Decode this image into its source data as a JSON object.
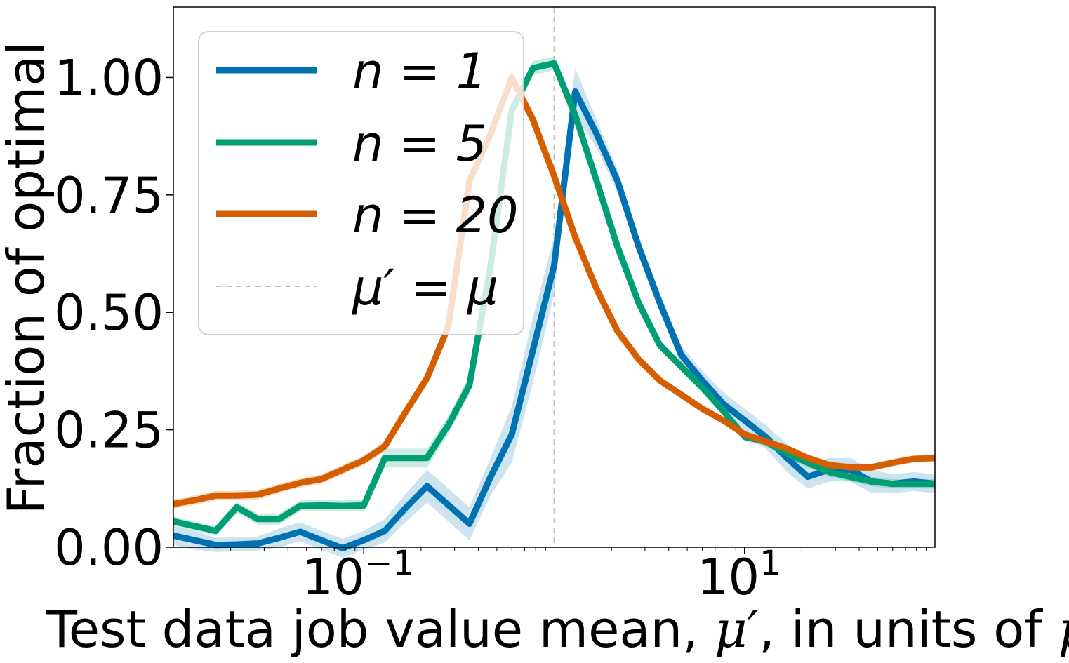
{
  "chart_data": {
    "type": "line",
    "xscale": "log",
    "xlabel_prefix": "Test data job value mean, ",
    "xlabel_symbol": "μ′",
    "xlabel_mid": ", in units of ",
    "xlabel_unit": "μ",
    "ylabel": "Fraction of optimal",
    "xlim": [
      0.01,
      100
    ],
    "ylim": [
      0,
      1.15
    ],
    "xticks": [
      {
        "value": 0.1,
        "base": "10",
        "exp": "−1"
      },
      {
        "value": 10,
        "base": "10",
        "exp": "1"
      }
    ],
    "yticks": [
      {
        "value": 0,
        "label": "0.00"
      },
      {
        "value": 0.25,
        "label": "0.25"
      },
      {
        "value": 0.5,
        "label": "0.50"
      },
      {
        "value": 0.75,
        "label": "0.75"
      },
      {
        "value": 1.0,
        "label": "1.00"
      }
    ],
    "reference_line": {
      "x": 1,
      "label": "μ′ = μ",
      "color": "#c0c0c0"
    },
    "legend_position": "upper-left",
    "grid": false,
    "series": [
      {
        "name": "n = 1",
        "color": "#0072b2",
        "x": [
          0.01,
          0.0129,
          0.0167,
          0.0215,
          0.0278,
          0.0359,
          0.0464,
          0.0599,
          0.0774,
          0.1,
          0.129,
          0.167,
          0.215,
          0.278,
          0.359,
          0.464,
          0.599,
          0.774,
          1.0,
          1.29,
          1.67,
          2.15,
          2.78,
          3.59,
          4.64,
          5.99,
          7.74,
          10,
          12.9,
          16.7,
          21.5,
          27.8,
          35.9,
          46.4,
          59.9,
          77.4,
          100
        ],
        "y": [
          0.025,
          0.015,
          0.005,
          0.006,
          0.008,
          0.02,
          0.033,
          0.015,
          -0.002,
          0.015,
          0.035,
          0.085,
          0.13,
          0.09,
          0.05,
          0.15,
          0.24,
          0.42,
          0.6,
          0.97,
          0.88,
          0.78,
          0.64,
          0.52,
          0.41,
          0.355,
          0.305,
          0.27,
          0.235,
          0.19,
          0.15,
          0.165,
          0.165,
          0.14,
          0.135,
          0.14,
          0.135
        ],
        "band_halfwidth": [
          0.02,
          0.02,
          0.015,
          0.015,
          0.015,
          0.02,
          0.02,
          0.02,
          0.02,
          0.02,
          0.025,
          0.03,
          0.035,
          0.035,
          0.035,
          0.04,
          0.06,
          0.07,
          0.06,
          0.05,
          0.03,
          0.025,
          0.02,
          0.02,
          0.02,
          0.02,
          0.025,
          0.025,
          0.025,
          0.03,
          0.025,
          0.025,
          0.025,
          0.025,
          0.02,
          0.02,
          0.02
        ]
      },
      {
        "name": "n = 5",
        "color": "#009e73",
        "x": [
          0.01,
          0.0129,
          0.0167,
          0.0215,
          0.0278,
          0.0359,
          0.0464,
          0.0599,
          0.0774,
          0.1,
          0.129,
          0.167,
          0.215,
          0.278,
          0.359,
          0.464,
          0.599,
          0.774,
          1.0,
          1.29,
          1.67,
          2.15,
          2.78,
          3.59,
          4.64,
          5.99,
          7.74,
          10,
          12.9,
          16.7,
          21.5,
          27.8,
          35.9,
          46.4,
          59.9,
          77.4,
          100
        ],
        "y": [
          0.055,
          0.045,
          0.035,
          0.085,
          0.06,
          0.06,
          0.088,
          0.089,
          0.088,
          0.089,
          0.19,
          0.19,
          0.19,
          0.26,
          0.345,
          0.6,
          0.93,
          1.02,
          1.03,
          0.92,
          0.78,
          0.64,
          0.52,
          0.43,
          0.385,
          0.34,
          0.29,
          0.235,
          0.225,
          0.2,
          0.18,
          0.16,
          0.15,
          0.14,
          0.135,
          0.135,
          0.135
        ],
        "band_halfwidth": [
          0.01,
          0.01,
          0.01,
          0.012,
          0.012,
          0.012,
          0.012,
          0.012,
          0.012,
          0.012,
          0.02,
          0.02,
          0.02,
          0.02,
          0.02,
          0.02,
          0.015,
          0.015,
          0.015,
          0.015,
          0.01,
          0.01,
          0.01,
          0.01,
          0.01,
          0.01,
          0.01,
          0.01,
          0.01,
          0.01,
          0.01,
          0.01,
          0.01,
          0.01,
          0.01,
          0.01,
          0.01
        ]
      },
      {
        "name": "n = 20",
        "color": "#d55e00",
        "x": [
          0.01,
          0.0129,
          0.0167,
          0.0215,
          0.0278,
          0.0359,
          0.0464,
          0.0599,
          0.0774,
          0.1,
          0.129,
          0.167,
          0.215,
          0.278,
          0.359,
          0.464,
          0.599,
          0.774,
          1.0,
          1.29,
          1.67,
          2.15,
          2.78,
          3.59,
          4.64,
          5.99,
          7.74,
          10,
          12.9,
          16.7,
          21.5,
          27.8,
          35.9,
          46.4,
          59.9,
          77.4,
          100
        ],
        "y": [
          0.092,
          0.1,
          0.11,
          0.11,
          0.112,
          0.125,
          0.137,
          0.145,
          0.165,
          0.185,
          0.215,
          0.29,
          0.36,
          0.47,
          0.78,
          0.88,
          1.0,
          0.91,
          0.79,
          0.66,
          0.55,
          0.46,
          0.4,
          0.355,
          0.325,
          0.295,
          0.27,
          0.24,
          0.225,
          0.21,
          0.19,
          0.175,
          0.17,
          0.17,
          0.18,
          0.188,
          0.19
        ],
        "band_halfwidth": [
          0.01,
          0.01,
          0.01,
          0.01,
          0.01,
          0.01,
          0.01,
          0.01,
          0.01,
          0.01,
          0.01,
          0.012,
          0.015,
          0.015,
          0.01,
          0.01,
          0.008,
          0.008,
          0.008,
          0.008,
          0.008,
          0.008,
          0.008,
          0.008,
          0.008,
          0.008,
          0.008,
          0.008,
          0.008,
          0.008,
          0.008,
          0.008,
          0.008,
          0.008,
          0.008,
          0.008,
          0.008
        ]
      }
    ]
  }
}
